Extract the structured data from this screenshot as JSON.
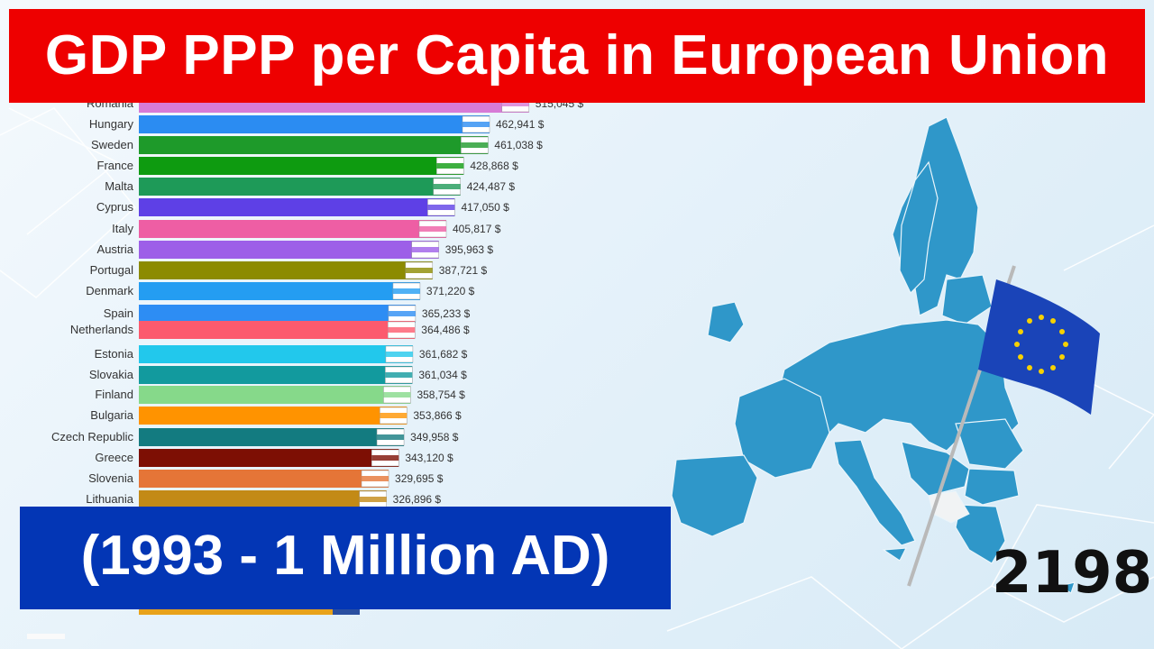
{
  "header": {
    "title": "GDP PPP per Capita in European Union"
  },
  "subtitle": {
    "text": "(1993 - 1 Million AD)"
  },
  "year": {
    "value": "2198"
  },
  "chart_data": {
    "type": "bar",
    "orientation": "horizontal",
    "categories": [
      "Romania",
      "Hungary",
      "Sweden",
      "France",
      "Malta",
      "Cyprus",
      "Italy",
      "Austria",
      "Portugal",
      "Denmark",
      "Spain",
      "Netherlands",
      "Estonia",
      "Slovakia",
      "Finland",
      "Bulgaria",
      "Czech Republic",
      "Greece",
      "Slovenia",
      "Lithuania"
    ],
    "values": [
      515045,
      462941,
      461038,
      428868,
      424487,
      417050,
      405817,
      395963,
      387721,
      371220,
      365233,
      364486,
      361682,
      361034,
      358754,
      353866,
      349958,
      343120,
      329695,
      326896
    ],
    "value_labels": [
      "515,045 $",
      "462,941 $",
      "461,038 $",
      "428,868 $",
      "424,487 $",
      "417,050 $",
      "405,817 $",
      "395,963 $",
      "387,721 $",
      "371,220 $",
      "365,233 $",
      "364,486 $",
      "361,682 $",
      "361,034 $",
      "358,754 $",
      "353,866 $",
      "349,958 $",
      "343,120 $",
      "329,695 $",
      "326,896 $"
    ],
    "colors": [
      "#d77bd6",
      "#2b8cf2",
      "#1e9a2a",
      "#0e9b10",
      "#1e9a58",
      "#5e40e6",
      "#ee5ea4",
      "#9d5fe8",
      "#8c8b00",
      "#249df2",
      "#2d8df4",
      "#fc5a6e",
      "#22c8ec",
      "#129a9e",
      "#86d98a",
      "#ff9300",
      "#137b80",
      "#7d0f04",
      "#e57537",
      "#c38a16"
    ],
    "title": "GDP PPP per Capita in European Union",
    "xlabel": "",
    "ylabel": ""
  }
}
